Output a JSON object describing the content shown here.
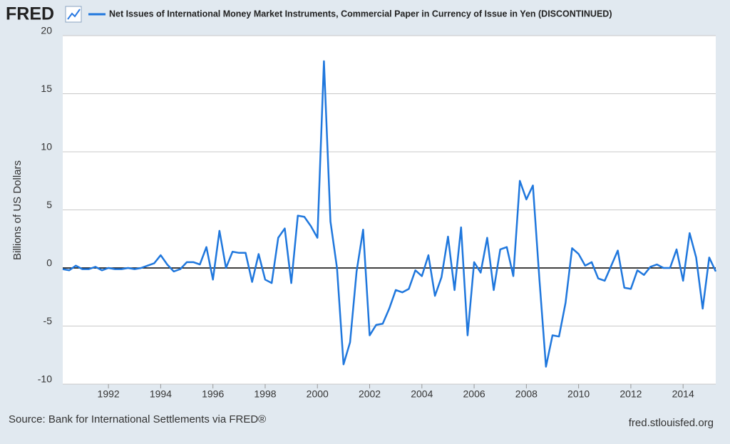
{
  "chart_data": {
    "type": "line",
    "logo": "FRED",
    "title": "Net Issues of International Money Market Instruments, Commercial Paper in Currency of Issue in Yen (DISCONTINUED)",
    "y_label": "Billions of US Dollars",
    "source": "Source: Bank for International Settlements via FRED®",
    "link": "fred.stlouisfed.org",
    "x": [
      1990.25,
      1990.5,
      1990.75,
      1991,
      1991.25,
      1991.5,
      1991.75,
      1992,
      1992.25,
      1992.5,
      1992.75,
      1993,
      1993.25,
      1993.5,
      1993.75,
      1994,
      1994.25,
      1994.5,
      1994.75,
      1995,
      1995.25,
      1995.5,
      1995.75,
      1996,
      1996.25,
      1996.5,
      1996.75,
      1997,
      1997.25,
      1997.5,
      1997.75,
      1998,
      1998.25,
      1998.5,
      1998.75,
      1999,
      1999.25,
      1999.5,
      1999.75,
      2000,
      2000.25,
      2000.5,
      2000.75,
      2001,
      2001.25,
      2001.5,
      2001.75,
      2002,
      2002.25,
      2002.5,
      2002.75,
      2003,
      2003.25,
      2003.5,
      2003.75,
      2004,
      2004.25,
      2004.5,
      2004.75,
      2005,
      2005.25,
      2005.5,
      2005.75,
      2006,
      2006.25,
      2006.5,
      2006.75,
      2007,
      2007.25,
      2007.5,
      2007.75,
      2008,
      2008.25,
      2008.5,
      2008.75,
      2009,
      2009.25,
      2009.5,
      2009.75,
      2010,
      2010.25,
      2010.5,
      2010.75,
      2011,
      2011.25,
      2011.5,
      2011.75,
      2012,
      2012.25,
      2012.5,
      2012.75,
      2013,
      2013.25,
      2013.5,
      2013.75,
      2014,
      2014.25,
      2014.5,
      2014.75,
      2015,
      2015.25
    ],
    "series": [
      {
        "name": "Net Issues of International Money Market Instruments, Commercial Paper in Currency of Issue in Yen (DISCONTINUED)",
        "color": "#1f77dd",
        "values": [
          -0.1,
          -0.2,
          0.2,
          -0.1,
          -0.1,
          0.1,
          -0.2,
          0.0,
          -0.1,
          -0.1,
          0.0,
          -0.1,
          0.0,
          0.2,
          0.4,
          1.1,
          0.3,
          -0.3,
          -0.1,
          0.5,
          0.5,
          0.3,
          1.8,
          -1.0,
          3.2,
          0.0,
          1.4,
          1.3,
          1.3,
          -1.2,
          1.2,
          -1.0,
          -1.3,
          2.6,
          3.4,
          -1.3,
          4.5,
          4.4,
          3.6,
          2.6,
          17.8,
          4.0,
          0.0,
          -8.3,
          -6.4,
          -0.3,
          3.3,
          -5.8,
          -4.9,
          -4.8,
          -3.5,
          -1.9,
          -2.1,
          -1.8,
          -0.2,
          -0.7,
          1.1,
          -2.4,
          -0.8,
          2.7,
          -1.9,
          3.5,
          -5.8,
          0.5,
          -0.4,
          2.6,
          -1.9,
          1.6,
          1.8,
          -0.7,
          7.5,
          5.9,
          7.1,
          -1.0,
          -8.5,
          -5.8,
          -5.9,
          -3.0,
          1.7,
          1.2,
          0.2,
          0.5,
          -0.9,
          -1.1,
          0.2,
          1.5,
          -1.7,
          -1.8,
          -0.2,
          -0.6,
          0.1,
          0.3,
          0.0,
          0.0,
          1.6,
          -1.1,
          3.0,
          0.9,
          -3.5,
          0.9,
          -0.3
        ]
      }
    ],
    "xlim": [
      1990.25,
      2015.25
    ],
    "xticks": [
      1992,
      1994,
      1996,
      1998,
      2000,
      2002,
      2004,
      2006,
      2008,
      2010,
      2012,
      2014
    ],
    "ylim": [
      -10,
      20
    ],
    "yticks": [
      -10,
      -5,
      0,
      5,
      10,
      15,
      20
    ],
    "grid": true
  }
}
